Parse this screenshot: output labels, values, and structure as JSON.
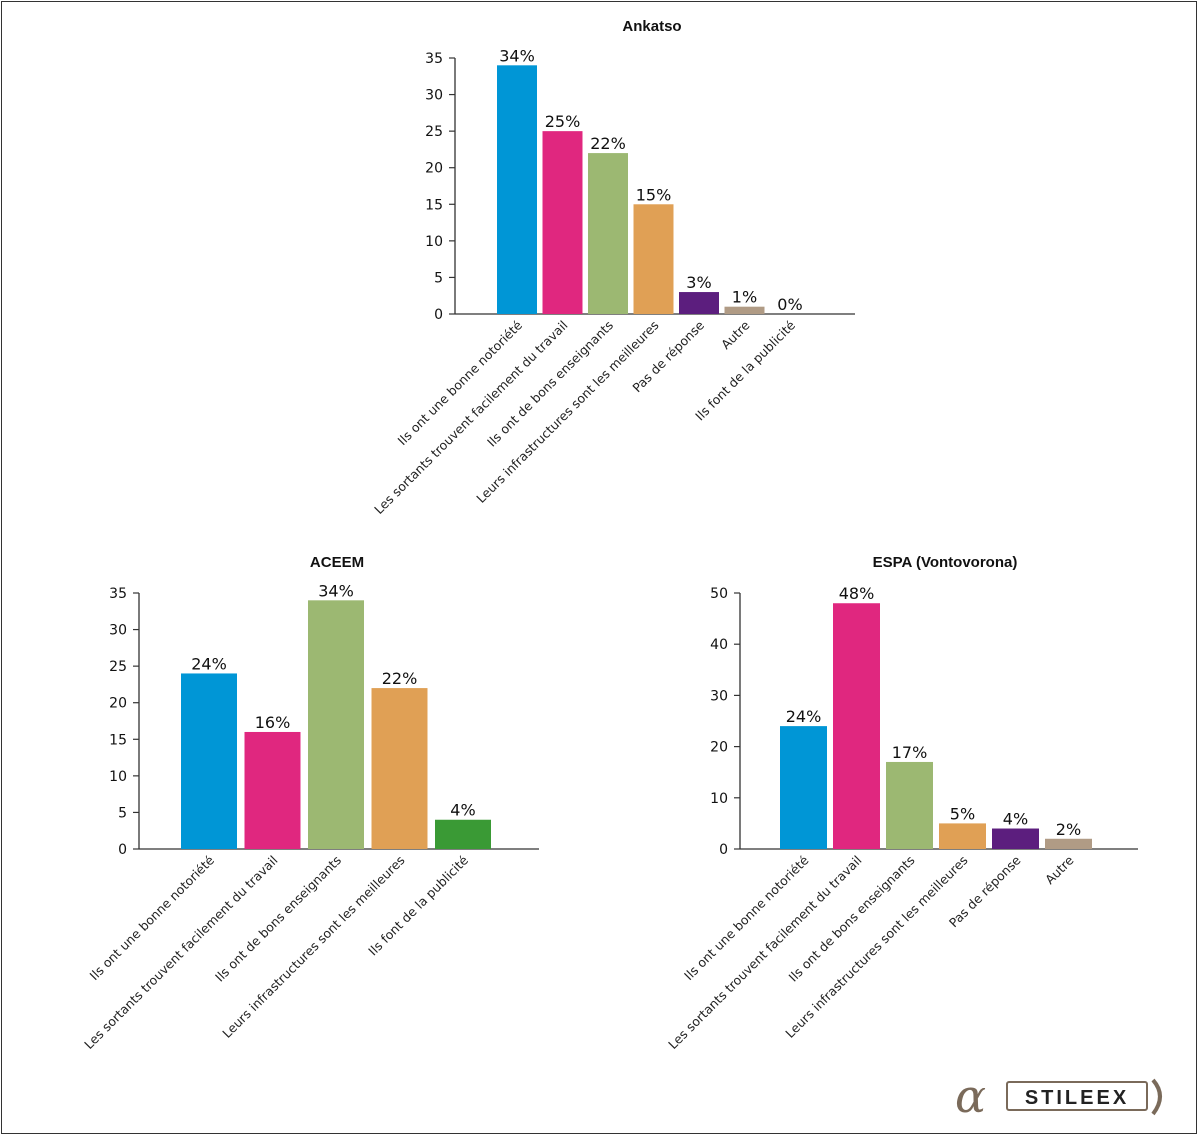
{
  "chart_data": [
    {
      "type": "bar",
      "title": "Ankatso",
      "categories": [
        "Ils ont une bonne notoriété",
        "Les sortants trouvent facilement du travail",
        "Ils ont de bons enseignants",
        "Leurs infrastructures sont les meilleures",
        "Pas de réponse",
        "Autre",
        "Ils font de la publicité"
      ],
      "values": [
        34,
        25,
        22,
        15,
        3,
        1,
        0
      ],
      "labels": [
        "34%",
        "25%",
        "22%",
        "15%",
        "3%",
        "1%",
        "0%"
      ],
      "colors": [
        "#0096d6",
        "#e0277f",
        "#9cb872",
        "#e0a055",
        "#5c1e7e",
        "#b09b85",
        "#aaaaaa"
      ],
      "yticks": [
        0,
        5,
        10,
        15,
        20,
        25,
        30,
        35
      ],
      "ylim": [
        0,
        35
      ],
      "xlabel": "",
      "ylabel": ""
    },
    {
      "type": "bar",
      "title": "ACEEM",
      "categories": [
        "Ils ont une bonne notoriété",
        "Les sortants trouvent facilement du travail",
        "Ils ont de bons enseignants",
        "Leurs infrastructures sont les meilleures",
        "Ils font de la publicité"
      ],
      "values": [
        24,
        16,
        34,
        22,
        4
      ],
      "labels": [
        "24%",
        "16%",
        "34%",
        "22%",
        "4%"
      ],
      "colors": [
        "#0096d6",
        "#e0277f",
        "#9cb872",
        "#e0a055",
        "#3a9a35"
      ],
      "yticks": [
        0,
        5,
        10,
        15,
        20,
        25,
        30,
        35
      ],
      "ylim": [
        0,
        35
      ],
      "xlabel": "",
      "ylabel": ""
    },
    {
      "type": "bar",
      "title": "ESPA (Vontovorona)",
      "categories": [
        "Ils ont une bonne notoriété",
        "Les sortants trouvent facilement du travail",
        "Ils ont de bons enseignants",
        "Leurs infrastructures sont les meilleures",
        "Pas de réponse",
        "Autre"
      ],
      "values": [
        24,
        48,
        17,
        5,
        4,
        2
      ],
      "labels": [
        "24%",
        "48%",
        "17%",
        "5%",
        "4%",
        "2%"
      ],
      "colors": [
        "#0096d6",
        "#e0277f",
        "#9cb872",
        "#e0a055",
        "#5c1e7e",
        "#b09b85"
      ],
      "yticks": [
        0,
        10,
        20,
        30,
        40,
        50
      ],
      "ylim": [
        0,
        50
      ],
      "xlabel": "",
      "ylabel": ""
    }
  ],
  "logo": {
    "text": "STILEEX",
    "mark": "α"
  }
}
